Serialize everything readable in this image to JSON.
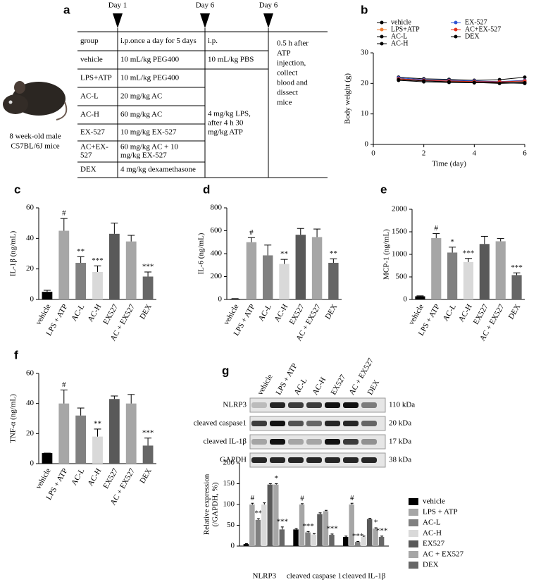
{
  "panel_a": {
    "panel": "a",
    "timeline": [
      "Day 1",
      "Day 6",
      "Day 6"
    ],
    "mouse_caption": [
      "8 week-old male",
      "C57BL/6J mice"
    ],
    "table": {
      "header": [
        "group",
        "i.p.once a day for 5 days",
        "i.p."
      ],
      "rows": [
        [
          "vehicle",
          "10 mL/kg PEG400",
          "10 mL/kg PBS"
        ],
        [
          "LPS+ATP",
          "10 mL/kg PEG400"
        ],
        [
          "AC-L",
          "20 mg/kg AC"
        ],
        [
          "AC-H",
          "60 mg/kg AC"
        ],
        [
          "EX-527",
          "10 mg/kg EX-527"
        ],
        [
          [
            "AC+EX-",
            "527"
          ],
          [
            "60 mg/kg AC + 10",
            "mg/kg EX-527"
          ]
        ],
        [
          "DEX",
          "4 mg/kg dexamethasone"
        ]
      ],
      "merged_cell": [
        "4 mg/kg LPS,",
        "after 4 h 30",
        "mg/kg ATP"
      ],
      "last_column": [
        "0.5 h after",
        "ATP",
        "injection,",
        "collect",
        "blood and",
        "dissect",
        "mice"
      ]
    }
  },
  "blot": {
    "panel": "g",
    "lanes": [
      "vehicle",
      "LPS + ATP",
      "AC-L",
      "AC-H",
      "EX527",
      "AC + EX527",
      "DEX"
    ],
    "proteins": [
      "NLRP3",
      "cleaved  caspase1",
      "cleaved IL-1β",
      "GAPDH"
    ],
    "sizes": [
      "110 kDa",
      "20 kDa",
      "17 kDa",
      "38 kDa"
    ]
  },
  "chart_data": [
    {
      "type": "line",
      "panel": "b",
      "x_label": "Time (day)",
      "y_label": "Body weight (g)",
      "x": [
        1,
        2,
        3,
        4,
        5,
        6
      ],
      "xlim": [
        0,
        6
      ],
      "xticks": [
        0,
        2,
        4,
        6
      ],
      "ylim": [
        0,
        30
      ],
      "yticks": [
        0,
        10,
        20,
        30
      ],
      "series": [
        {
          "name": "vehicle",
          "color": "#000000",
          "values": [
            22,
            21.5,
            21.3,
            21,
            21.2,
            22
          ]
        },
        {
          "name": "LPS+ATP",
          "color": "#ed7d31",
          "values": [
            21.5,
            21,
            20.8,
            20.5,
            20.5,
            21
          ]
        },
        {
          "name": "AC-L",
          "color": "#000000",
          "values": [
            21.5,
            21,
            20.5,
            20.5,
            20.3,
            20.5
          ]
        },
        {
          "name": "AC-H",
          "color": "#000000",
          "values": [
            21,
            20.5,
            20.3,
            20.2,
            20.2,
            20
          ]
        },
        {
          "name": "EX-527",
          "color": "#2f55d4",
          "values": [
            21.8,
            21.2,
            21,
            20.8,
            20.6,
            21
          ]
        },
        {
          "name": "AC+EX-527",
          "color": "#e0301e",
          "values": [
            21.5,
            21,
            20.8,
            20.6,
            20.5,
            20.8
          ]
        },
        {
          "name": "DEX",
          "color": "#000000",
          "values": [
            21.2,
            20.8,
            20.5,
            20.3,
            20,
            20.2
          ]
        }
      ]
    },
    {
      "type": "bar",
      "panel": "c",
      "y_label": "IL-1β (ng/mL)",
      "categories": [
        "vehicle",
        "LPS + ATP",
        "AC-L",
        "AC-H",
        "EX527",
        "AC + EX527",
        "DEX"
      ],
      "values": [
        5,
        45,
        24,
        18,
        43,
        38,
        15
      ],
      "errors": [
        1,
        8,
        4,
        4,
        7,
        4,
        3
      ],
      "annotations": [
        null,
        "#",
        "**",
        "***",
        null,
        null,
        "***"
      ],
      "colors": [
        "#000000",
        "#a6a6a6",
        "#808080",
        "#d9d9d9",
        "#595959",
        "#a6a6a6",
        "#666666"
      ],
      "ylim": [
        0,
        60
      ],
      "yticks": [
        0,
        20,
        40,
        60
      ]
    },
    {
      "type": "bar",
      "panel": "d",
      "y_label": "IL-6 (ng/mL)",
      "categories": [
        "vehicle",
        "LPS + ATP",
        "AC-L",
        "AC-H",
        "EX527",
        "AC + EX527",
        "DEX"
      ],
      "values": [
        5,
        500,
        385,
        310,
        565,
        545,
        320
      ],
      "errors": [
        2,
        40,
        90,
        40,
        55,
        70,
        35
      ],
      "annotations": [
        null,
        "#",
        null,
        "**",
        null,
        null,
        "**"
      ],
      "colors": [
        "#000000",
        "#a6a6a6",
        "#808080",
        "#d9d9d9",
        "#595959",
        "#a6a6a6",
        "#666666"
      ],
      "ylim": [
        0,
        800
      ],
      "yticks": [
        0,
        200,
        400,
        600,
        800
      ]
    },
    {
      "type": "bar",
      "panel": "e",
      "y_label": "MCP-1 (ng/mL)",
      "categories": [
        "vehicle",
        "LPS + ATP",
        "AC-L",
        "AC-H",
        "EX527",
        "AC + EX527",
        "DEX"
      ],
      "values": [
        70,
        1360,
        1040,
        830,
        1230,
        1290,
        540
      ],
      "errors": [
        10,
        100,
        120,
        80,
        170,
        60,
        50
      ],
      "annotations": [
        null,
        "#",
        "*",
        "***",
        null,
        null,
        "***"
      ],
      "colors": [
        "#000000",
        "#a6a6a6",
        "#808080",
        "#d9d9d9",
        "#595959",
        "#a6a6a6",
        "#666666"
      ],
      "ylim": [
        0,
        2000
      ],
      "yticks": [
        0,
        500,
        1000,
        1500,
        2000
      ]
    },
    {
      "type": "bar",
      "panel": "f",
      "y_label": "TNF-α (ng/mL)",
      "categories": [
        "vehicle",
        "LPS + ATP",
        "AC-L",
        "AC-H",
        "EX527",
        "AC + EX527",
        "DEX"
      ],
      "values": [
        7,
        40,
        32,
        18,
        43,
        40,
        12
      ],
      "errors": [
        0,
        9,
        5,
        5,
        2,
        6,
        5
      ],
      "annotations": [
        null,
        "#",
        null,
        "**",
        null,
        null,
        "***"
      ],
      "colors": [
        "#000000",
        "#a6a6a6",
        "#808080",
        "#d9d9d9",
        "#595959",
        "#a6a6a6",
        "#666666"
      ],
      "ylim": [
        0,
        60
      ],
      "yticks": [
        0,
        20,
        40,
        60
      ]
    },
    {
      "type": "grouped_bar",
      "panel": "g",
      "y_label": [
        "Relative expression",
        "(/GAPDH, %)"
      ],
      "categories": [
        "NLRP3",
        "cleaved caspase 1",
        "cleaved IL-1β"
      ],
      "ylim": [
        0,
        200
      ],
      "yticks": [
        0,
        50,
        100,
        150,
        200
      ],
      "series": [
        {
          "name": "vehicle",
          "color": "#000000",
          "values": [
            5,
            40,
            22
          ],
          "errors": [
            1,
            2,
            2
          ],
          "annotations": [
            null,
            null,
            null
          ]
        },
        {
          "name": "LPS + ATP",
          "color": "#a6a6a6",
          "values": [
            100,
            100,
            100
          ],
          "errors": [
            3,
            2,
            3
          ],
          "annotations": [
            "#",
            "#",
            "#"
          ]
        },
        {
          "name": "AC-L",
          "color": "#808080",
          "values": [
            63,
            33,
            10
          ],
          "errors": [
            3,
            2,
            1
          ],
          "annotations": [
            "**",
            "***",
            "***"
          ]
        },
        {
          "name": "AC-H",
          "color": "#d9d9d9",
          "values": [
            100,
            28,
            22
          ],
          "errors": [
            4,
            2,
            2
          ],
          "annotations": [
            null,
            null,
            null
          ]
        },
        {
          "name": "EX527",
          "color": "#595959",
          "values": [
            148,
            77,
            65
          ],
          "errors": [
            2,
            3,
            2
          ],
          "annotations": [
            null,
            null,
            null
          ]
        },
        {
          "name": "AC + EX527",
          "color": "#a6a6a6",
          "values": [
            148,
            84,
            42
          ],
          "errors": [
            2,
            2,
            2
          ],
          "annotations": [
            "*",
            null,
            "*"
          ]
        },
        {
          "name": "DEX",
          "color": "#666666",
          "values": [
            40,
            27,
            22
          ],
          "errors": [
            6,
            2,
            2
          ],
          "annotations": [
            "***",
            "***",
            "***"
          ]
        }
      ]
    }
  ]
}
